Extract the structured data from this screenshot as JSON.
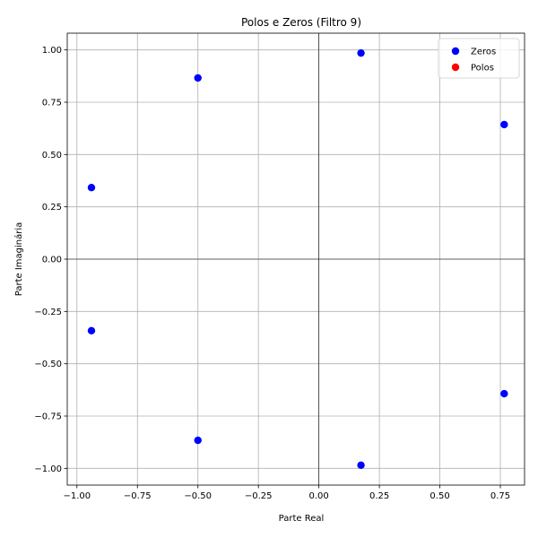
{
  "chart_data": {
    "type": "scatter",
    "title": "Polos e Zeros (Filtro 9)",
    "xlabel": "Parte Real",
    "ylabel": "Parte Imaginária",
    "xlim": [
      -1.04,
      0.85
    ],
    "ylim": [
      -1.08,
      1.08
    ],
    "x_ticks": [
      -1.0,
      -0.75,
      -0.5,
      -0.25,
      0.0,
      0.25,
      0.5,
      0.75
    ],
    "x_tick_labels": [
      "−1.00",
      "−0.75",
      "−0.50",
      "−0.25",
      "0.00",
      "0.25",
      "0.50",
      "0.75"
    ],
    "y_ticks": [
      -1.0,
      -0.75,
      -0.5,
      -0.25,
      0.0,
      0.25,
      0.5,
      0.75,
      1.0
    ],
    "y_tick_labels": [
      "−1.00",
      "−0.75",
      "−0.50",
      "−0.25",
      "0.00",
      "0.25",
      "0.50",
      "0.75",
      "1.00"
    ],
    "grid": true,
    "legend_position": "top-right",
    "series": [
      {
        "name": "Zeros",
        "color": "#0000ff",
        "points": [
          {
            "x": 0.174,
            "y": 0.985
          },
          {
            "x": 0.174,
            "y": -0.985
          },
          {
            "x": -0.5,
            "y": 0.866
          },
          {
            "x": -0.5,
            "y": -0.866
          },
          {
            "x": 0.766,
            "y": 0.643
          },
          {
            "x": 0.766,
            "y": -0.643
          },
          {
            "x": -0.94,
            "y": 0.342
          },
          {
            "x": -0.94,
            "y": -0.342
          }
        ]
      },
      {
        "name": "Polos",
        "color": "#ff0000",
        "points": []
      }
    ]
  }
}
